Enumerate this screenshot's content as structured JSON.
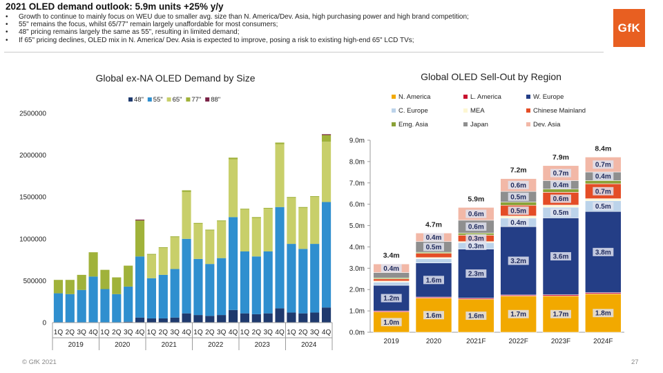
{
  "header": {
    "title": "2021 OLED demand outlook: 5.9m units +25% y/y",
    "bullets": [
      "Growth to continue to mainly focus on WEU due to smaller avg. size than N. America/Dev. Asia, high purchasing power and high brand competition;",
      "55\" remains the focus, whilst 65/77\" remain largely unaffordable for most consumers;",
      "48\" pricing remains largely the same as 55\", resulting in limited demand;",
      "If 65\" pricing declines, OLED mix in N. America/ Dev. Asia is expected to improve, posing a risk to existing high-end 65\" LCD TVs;"
    ],
    "logo_text": "GfK"
  },
  "footer": {
    "copyright": "© GfK 2021",
    "page_number": "27"
  },
  "colors": {
    "48": "#1f3a6e",
    "55": "#2f8fcf",
    "65": "#c8cf6a",
    "77": "#a0b23a",
    "88": "#7a2246",
    "n_america": "#f2a900",
    "l_america": "#c8102e",
    "w_europe": "#243e86",
    "c_europe": "#bcd3ea",
    "mea": "#fdf6d2",
    "chinese_mainland": "#e44d26",
    "emg_asia": "#8aa136",
    "japan": "#8f8f8f",
    "dev_asia": "#f2b8a7",
    "label_box": "#dfe2ee",
    "label_text": "#1f2a5c",
    "logo": "#e85f21"
  },
  "chart_data": [
    {
      "type": "bar",
      "stacked": true,
      "title": "Global ex-NA OLED Demand by Size",
      "legend": [
        "48\"",
        "55\"",
        "65\"",
        "77\"",
        "88\""
      ],
      "legend_position": "top",
      "categories": [
        "1Q",
        "2Q",
        "3Q",
        "4Q",
        "1Q",
        "2Q",
        "3Q",
        "4Q",
        "1Q",
        "2Q",
        "3Q",
        "4Q",
        "1Q",
        "2Q",
        "3Q",
        "4Q",
        "1Q",
        "2Q",
        "3Q",
        "4Q",
        "1Q",
        "2Q",
        "3Q",
        "4Q"
      ],
      "groups": [
        "2019",
        "2020",
        "2021",
        "2022",
        "2023",
        "2024"
      ],
      "ylim": [
        0,
        2500000
      ],
      "yticks": [
        0,
        500000,
        1000000,
        1500000,
        2000000,
        2500000
      ],
      "ytick_labels": [
        "0",
        "500000",
        "1000000",
        "1500000",
        "2000000",
        "2500000"
      ],
      "series": [
        {
          "name": "48\"",
          "key": "48",
          "values": [
            0,
            0,
            0,
            0,
            0,
            0,
            10000,
            60000,
            50000,
            50000,
            60000,
            110000,
            90000,
            80000,
            90000,
            150000,
            110000,
            100000,
            110000,
            170000,
            120000,
            110000,
            120000,
            180000
          ]
        },
        {
          "name": "55\"",
          "key": "55",
          "values": [
            350000,
            340000,
            390000,
            550000,
            400000,
            340000,
            420000,
            730000,
            480000,
            520000,
            580000,
            890000,
            670000,
            620000,
            680000,
            1110000,
            740000,
            690000,
            740000,
            1210000,
            820000,
            770000,
            820000,
            1260000
          ]
        },
        {
          "name": "65\"",
          "key": "65",
          "values": [
            0,
            0,
            0,
            0,
            0,
            0,
            0,
            0,
            280000,
            320000,
            380000,
            560000,
            420000,
            400000,
            440000,
            690000,
            500000,
            460000,
            510000,
            750000,
            550000,
            490000,
            560000,
            720000
          ]
        },
        {
          "name": "77\"",
          "key": "77",
          "values": [
            160000,
            170000,
            180000,
            290000,
            230000,
            200000,
            250000,
            430000,
            10000,
            10000,
            10000,
            20000,
            10000,
            10000,
            10000,
            20000,
            10000,
            10000,
            10000,
            20000,
            10000,
            10000,
            10000,
            80000
          ]
        },
        {
          "name": "88\"",
          "key": "88",
          "values": [
            0,
            0,
            0,
            0,
            0,
            0,
            0,
            10000,
            0,
            0,
            0,
            0,
            0,
            0,
            0,
            0,
            0,
            0,
            0,
            0,
            0,
            0,
            0,
            10000
          ]
        }
      ]
    },
    {
      "type": "bar",
      "stacked": true,
      "title": "Global OLED Sell-Out by Region",
      "categories": [
        "2019",
        "2020",
        "2021F",
        "2022F",
        "2023F",
        "2024F"
      ],
      "totals": [
        "3.4m",
        "4.7m",
        "5.9m",
        "7.2m",
        "7.9m",
        "8.4m"
      ],
      "ylim": [
        0,
        9
      ],
      "yticks": [
        0,
        1,
        2,
        3,
        4,
        5,
        6,
        7,
        8,
        9
      ],
      "ytick_labels": [
        "0.0m",
        "1.0m",
        "2.0m",
        "3.0m",
        "4.0m",
        "5.0m",
        "6.0m",
        "7.0m",
        "8.0m",
        "9.0m"
      ],
      "legend": [
        "N. America",
        "L. America",
        "W. Europe",
        "C. Europe",
        "MEA",
        "Chinese Mainland",
        "Emg. Asia",
        "Japan",
        "Dev. Asia"
      ],
      "legend_position": "top",
      "series": [
        {
          "name": "N. America",
          "key": "n_america",
          "values": [
            0.95,
            1.6,
            1.55,
            1.7,
            1.7,
            1.8
          ],
          "labels": [
            "1.0m",
            "1.6m",
            "1.6m",
            "1.7m",
            "1.7m",
            "1.8m"
          ]
        },
        {
          "name": "L. America",
          "key": "l_america",
          "values": [
            0.05,
            0.05,
            0.05,
            0.05,
            0.06,
            0.06
          ],
          "labels": [
            "",
            "",
            "",
            "",
            "",
            ""
          ]
        },
        {
          "name": "W. Europe",
          "key": "w_europe",
          "values": [
            1.2,
            1.6,
            2.3,
            3.2,
            3.6,
            3.8
          ],
          "labels": [
            "1.2m",
            "1.6m",
            "2.3m",
            "3.2m",
            "3.6m",
            "3.8m"
          ]
        },
        {
          "name": "C. Europe",
          "key": "c_europe",
          "values": [
            0.15,
            0.2,
            0.3,
            0.4,
            0.5,
            0.5
          ],
          "labels": [
            "",
            "",
            "0.3m",
            "0.4m",
            "0.5m",
            "0.5m"
          ]
        },
        {
          "name": "MEA",
          "key": "mea",
          "values": [
            0.05,
            0.05,
            0.05,
            0.1,
            0.1,
            0.1
          ],
          "labels": [
            "",
            "",
            "",
            "",
            "",
            ""
          ]
        },
        {
          "name": "Chinese Mainland",
          "key": "chinese_mainland",
          "values": [
            0.1,
            0.2,
            0.3,
            0.5,
            0.6,
            0.7
          ],
          "labels": [
            "",
            "",
            "0.3m",
            "0.5m",
            "0.6m",
            "0.7m"
          ]
        },
        {
          "name": "Emg. Asia",
          "key": "emg_asia",
          "values": [
            0.05,
            0.05,
            0.1,
            0.15,
            0.15,
            0.15
          ],
          "labels": [
            "",
            "",
            "",
            "",
            "",
            ""
          ]
        },
        {
          "name": "Japan",
          "key": "japan",
          "values": [
            0.25,
            0.5,
            0.6,
            0.5,
            0.4,
            0.4
          ],
          "labels": [
            "",
            "0.5m",
            "0.6m",
            "0.5m",
            "0.4m",
            "0.4m"
          ]
        },
        {
          "name": "Dev. Asia",
          "key": "dev_asia",
          "values": [
            0.4,
            0.4,
            0.6,
            0.6,
            0.7,
            0.7
          ],
          "labels": [
            "0.4m",
            "0.4m",
            "0.6m",
            "0.6m",
            "0.7m",
            "0.7m"
          ]
        }
      ]
    }
  ]
}
